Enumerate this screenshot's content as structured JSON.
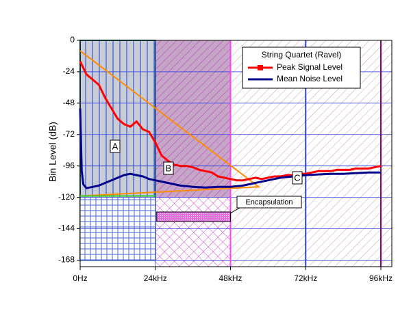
{
  "chart_data": {
    "type": "line",
    "y_label": "Bin Level (dB)",
    "legend_title": "String Quartet (Ravel)",
    "xlim": [
      0,
      99.5
    ],
    "ylim": [
      -173,
      0
    ],
    "xticks": [
      {
        "value": 0,
        "label": "0Hz"
      },
      {
        "value": 24,
        "label": "24kHz"
      },
      {
        "value": 48,
        "label": "48kHz"
      },
      {
        "value": 72,
        "label": "72kHz"
      },
      {
        "value": 96,
        "label": "96kHz"
      }
    ],
    "yticks": [
      0,
      -24,
      -48,
      -72,
      -96,
      -120,
      -144,
      -168
    ],
    "grid": true,
    "series": [
      {
        "name": "Peak Signal Level",
        "color": "#ff0000",
        "x": [
          0,
          2,
          4,
          6,
          8,
          10,
          12,
          14,
          16,
          18,
          20,
          22,
          24,
          26,
          28,
          30,
          32,
          34,
          36,
          38,
          40,
          42,
          44,
          46,
          48,
          50,
          52,
          54,
          56,
          58,
          60,
          62,
          64,
          66,
          68,
          70,
          72,
          74,
          76,
          78,
          80,
          82,
          84,
          86,
          88,
          90,
          92,
          94,
          96
        ],
        "values": [
          -16,
          -26,
          -30,
          -34,
          -44,
          -52,
          -60,
          -64,
          -66,
          -62,
          -68,
          -70,
          -78,
          -88,
          -92,
          -95,
          -96,
          -96,
          -97,
          -99,
          -100,
          -101,
          -104,
          -105,
          -106,
          -107,
          -107,
          -106,
          -105,
          -106,
          -105,
          -104,
          -104,
          -103,
          -103,
          -102,
          -102,
          -101,
          -100,
          -100,
          -100,
          -99,
          -99,
          -99,
          -98,
          -98,
          -98,
          -97,
          -96
        ]
      },
      {
        "name": "Mean Noise Level",
        "color": "#00008b",
        "x": [
          0,
          0.5,
          1,
          2,
          4,
          6,
          8,
          10,
          12,
          14,
          16,
          18,
          20,
          22,
          24,
          26,
          28,
          30,
          32,
          36,
          40,
          44,
          48,
          52,
          56,
          60,
          64,
          68,
          72,
          76,
          80,
          84,
          88,
          92,
          96
        ],
        "values": [
          -52,
          -100,
          -110,
          -113,
          -112,
          -111,
          -109,
          -107,
          -105,
          -103,
          -102,
          -103,
          -104,
          -106,
          -107,
          -108,
          -109,
          -110,
          -111,
          -112,
          -112.5,
          -112,
          -112,
          -111,
          -109,
          -107,
          -105,
          -104,
          -103,
          -102.5,
          -102,
          -102,
          -101.5,
          -101,
          -101
        ]
      }
    ],
    "annotation_lines": [
      {
        "color": "#ff8c00",
        "x": [
          0,
          57,
          0
        ],
        "y": [
          -8,
          -112,
          -119
        ]
      },
      {
        "color": "#33cc33",
        "x": [
          0,
          24
        ],
        "y": [
          -119,
          -119
        ]
      }
    ],
    "region_labels": [
      "A",
      "B",
      "C"
    ],
    "box_label": "Encapsulation"
  }
}
